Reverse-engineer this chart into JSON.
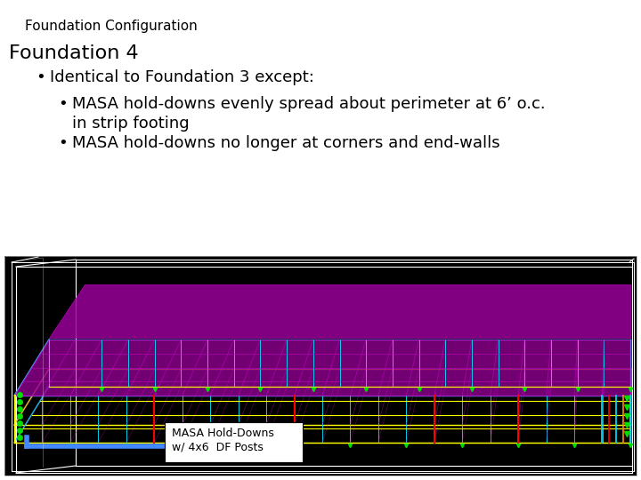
{
  "title": "Foundation Configuration",
  "title_fontsize": 11,
  "title_color": "#000000",
  "background_color": "#ffffff",
  "heading": "Foundation 4",
  "heading_fontsize": 16,
  "bullet1_text": "Identical to Foundation 3 except:",
  "bullet1_fontsize": 13,
  "bullet2a_line1": "MASA hold-downs evenly spread about perimeter at 6’ o.c.",
  "bullet2a_line2": "in strip footing",
  "bullet2b_text": "MASA hold-downs no longer at corners and end-walls",
  "bullet2_fontsize": 13,
  "label_text": "MASA Hold-Downs\nw/ 4x6  DF Posts",
  "label_fontsize": 9,
  "bullet_marker": "•",
  "image_bg": "#000000",
  "color_white": "#ffffff",
  "color_cyan": "#00e5ff",
  "color_magenta": "#cc00cc",
  "color_green": "#00dd00",
  "color_yellow": "#ffff00",
  "color_red": "#ff0000",
  "color_blue": "#4488ff",
  "color_gray": "#888888"
}
